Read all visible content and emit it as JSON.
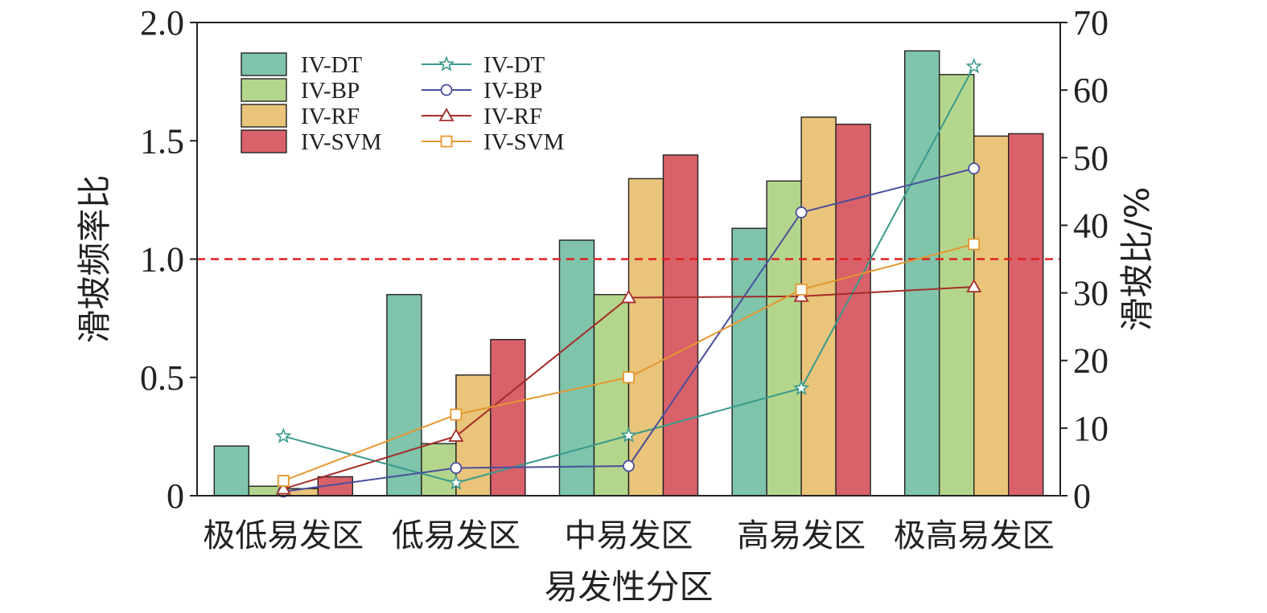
{
  "chart_data": {
    "type": "bar",
    "categories": [
      "极低易发区",
      "低易发区",
      "中易发区",
      "高易发区",
      "极高易发区"
    ],
    "xlabel": "易发性分区",
    "ylabel_left": "滑坡频率比",
    "ylabel_right": "滑坡比/%",
    "ylim_left": [
      0,
      2.0
    ],
    "ylim_right": [
      0,
      70
    ],
    "yticks_left": [
      "0",
      "0.5",
      "1.0",
      "1.5",
      "2.0"
    ],
    "yticks_right": [
      "0",
      "10",
      "20",
      "30",
      "40",
      "50",
      "60",
      "70"
    ],
    "ytick_values_left": [
      0,
      0.5,
      1.0,
      1.5,
      2.0
    ],
    "ytick_values_right": [
      0,
      10,
      20,
      30,
      40,
      50,
      60,
      70
    ],
    "reference_line": 1.0,
    "bar_series": [
      {
        "name": "IV-DT",
        "color": "#7fc4ab",
        "values": [
          0.21,
          0.85,
          1.08,
          1.13,
          1.88
        ]
      },
      {
        "name": "IV-BP",
        "color": "#b4d68c",
        "values": [
          0.04,
          0.22,
          0.85,
          1.33,
          1.78
        ]
      },
      {
        "name": "IV-RF",
        "color": "#e9c47a",
        "values": [
          0.03,
          0.51,
          1.34,
          1.6,
          1.52
        ]
      },
      {
        "name": "IV-SVM",
        "color": "#d9616a",
        "values": [
          0.08,
          0.66,
          1.44,
          1.57,
          1.53
        ]
      }
    ],
    "line_series": [
      {
        "name": "IV-DT",
        "color": "#3a9a8c",
        "marker": "star",
        "values": [
          8.8,
          1.9,
          8.9,
          15.9,
          63.5
        ]
      },
      {
        "name": "IV-BP",
        "color": "#4a4f9e",
        "marker": "circle",
        "values": [
          0.6,
          4.1,
          4.4,
          41.9,
          48.4
        ]
      },
      {
        "name": "IV-RF",
        "color": "#a42e2a",
        "marker": "triangle",
        "values": [
          1.0,
          8.8,
          29.3,
          29.5,
          30.9
        ]
      },
      {
        "name": "IV-SVM",
        "color": "#e6962e",
        "marker": "square",
        "values": [
          2.2,
          12.0,
          17.5,
          30.5,
          37.2
        ]
      }
    ],
    "legend_position": "top-left"
  }
}
